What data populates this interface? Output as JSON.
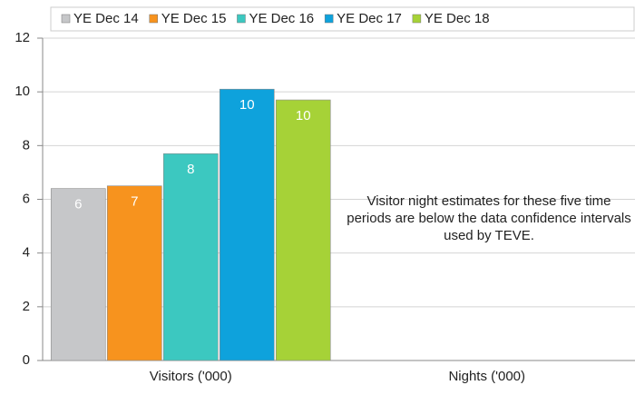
{
  "chart_data": {
    "type": "bar",
    "categories": [
      "Visitors ('000)",
      "Nights ('000)"
    ],
    "series": [
      {
        "name": "YE Dec 14",
        "color": "#c6c7c9",
        "values": [
          6.4,
          null
        ],
        "value_labels": [
          "6",
          null
        ]
      },
      {
        "name": "YE Dec 15",
        "color": "#f7931e",
        "values": [
          6.5,
          null
        ],
        "value_labels": [
          "7",
          null
        ]
      },
      {
        "name": "YE Dec 16",
        "color": "#3cc8c0",
        "values": [
          7.7,
          null
        ],
        "value_labels": [
          "8",
          null
        ]
      },
      {
        "name": "YE Dec 17",
        "color": "#0ea2dc",
        "values": [
          10.1,
          null
        ],
        "value_labels": [
          "10",
          null
        ]
      },
      {
        "name": "YE Dec 18",
        "color": "#a6d237",
        "values": [
          9.7,
          null
        ],
        "value_labels": [
          "10",
          null
        ]
      }
    ],
    "ylim": [
      0,
      12
    ],
    "yticks": [
      0,
      2,
      4,
      6,
      8,
      10,
      12
    ],
    "grid": true,
    "legend": "top",
    "annotation": "Visitor night estimates for these five time periods are below the data confidence intervals used by TEVE."
  }
}
